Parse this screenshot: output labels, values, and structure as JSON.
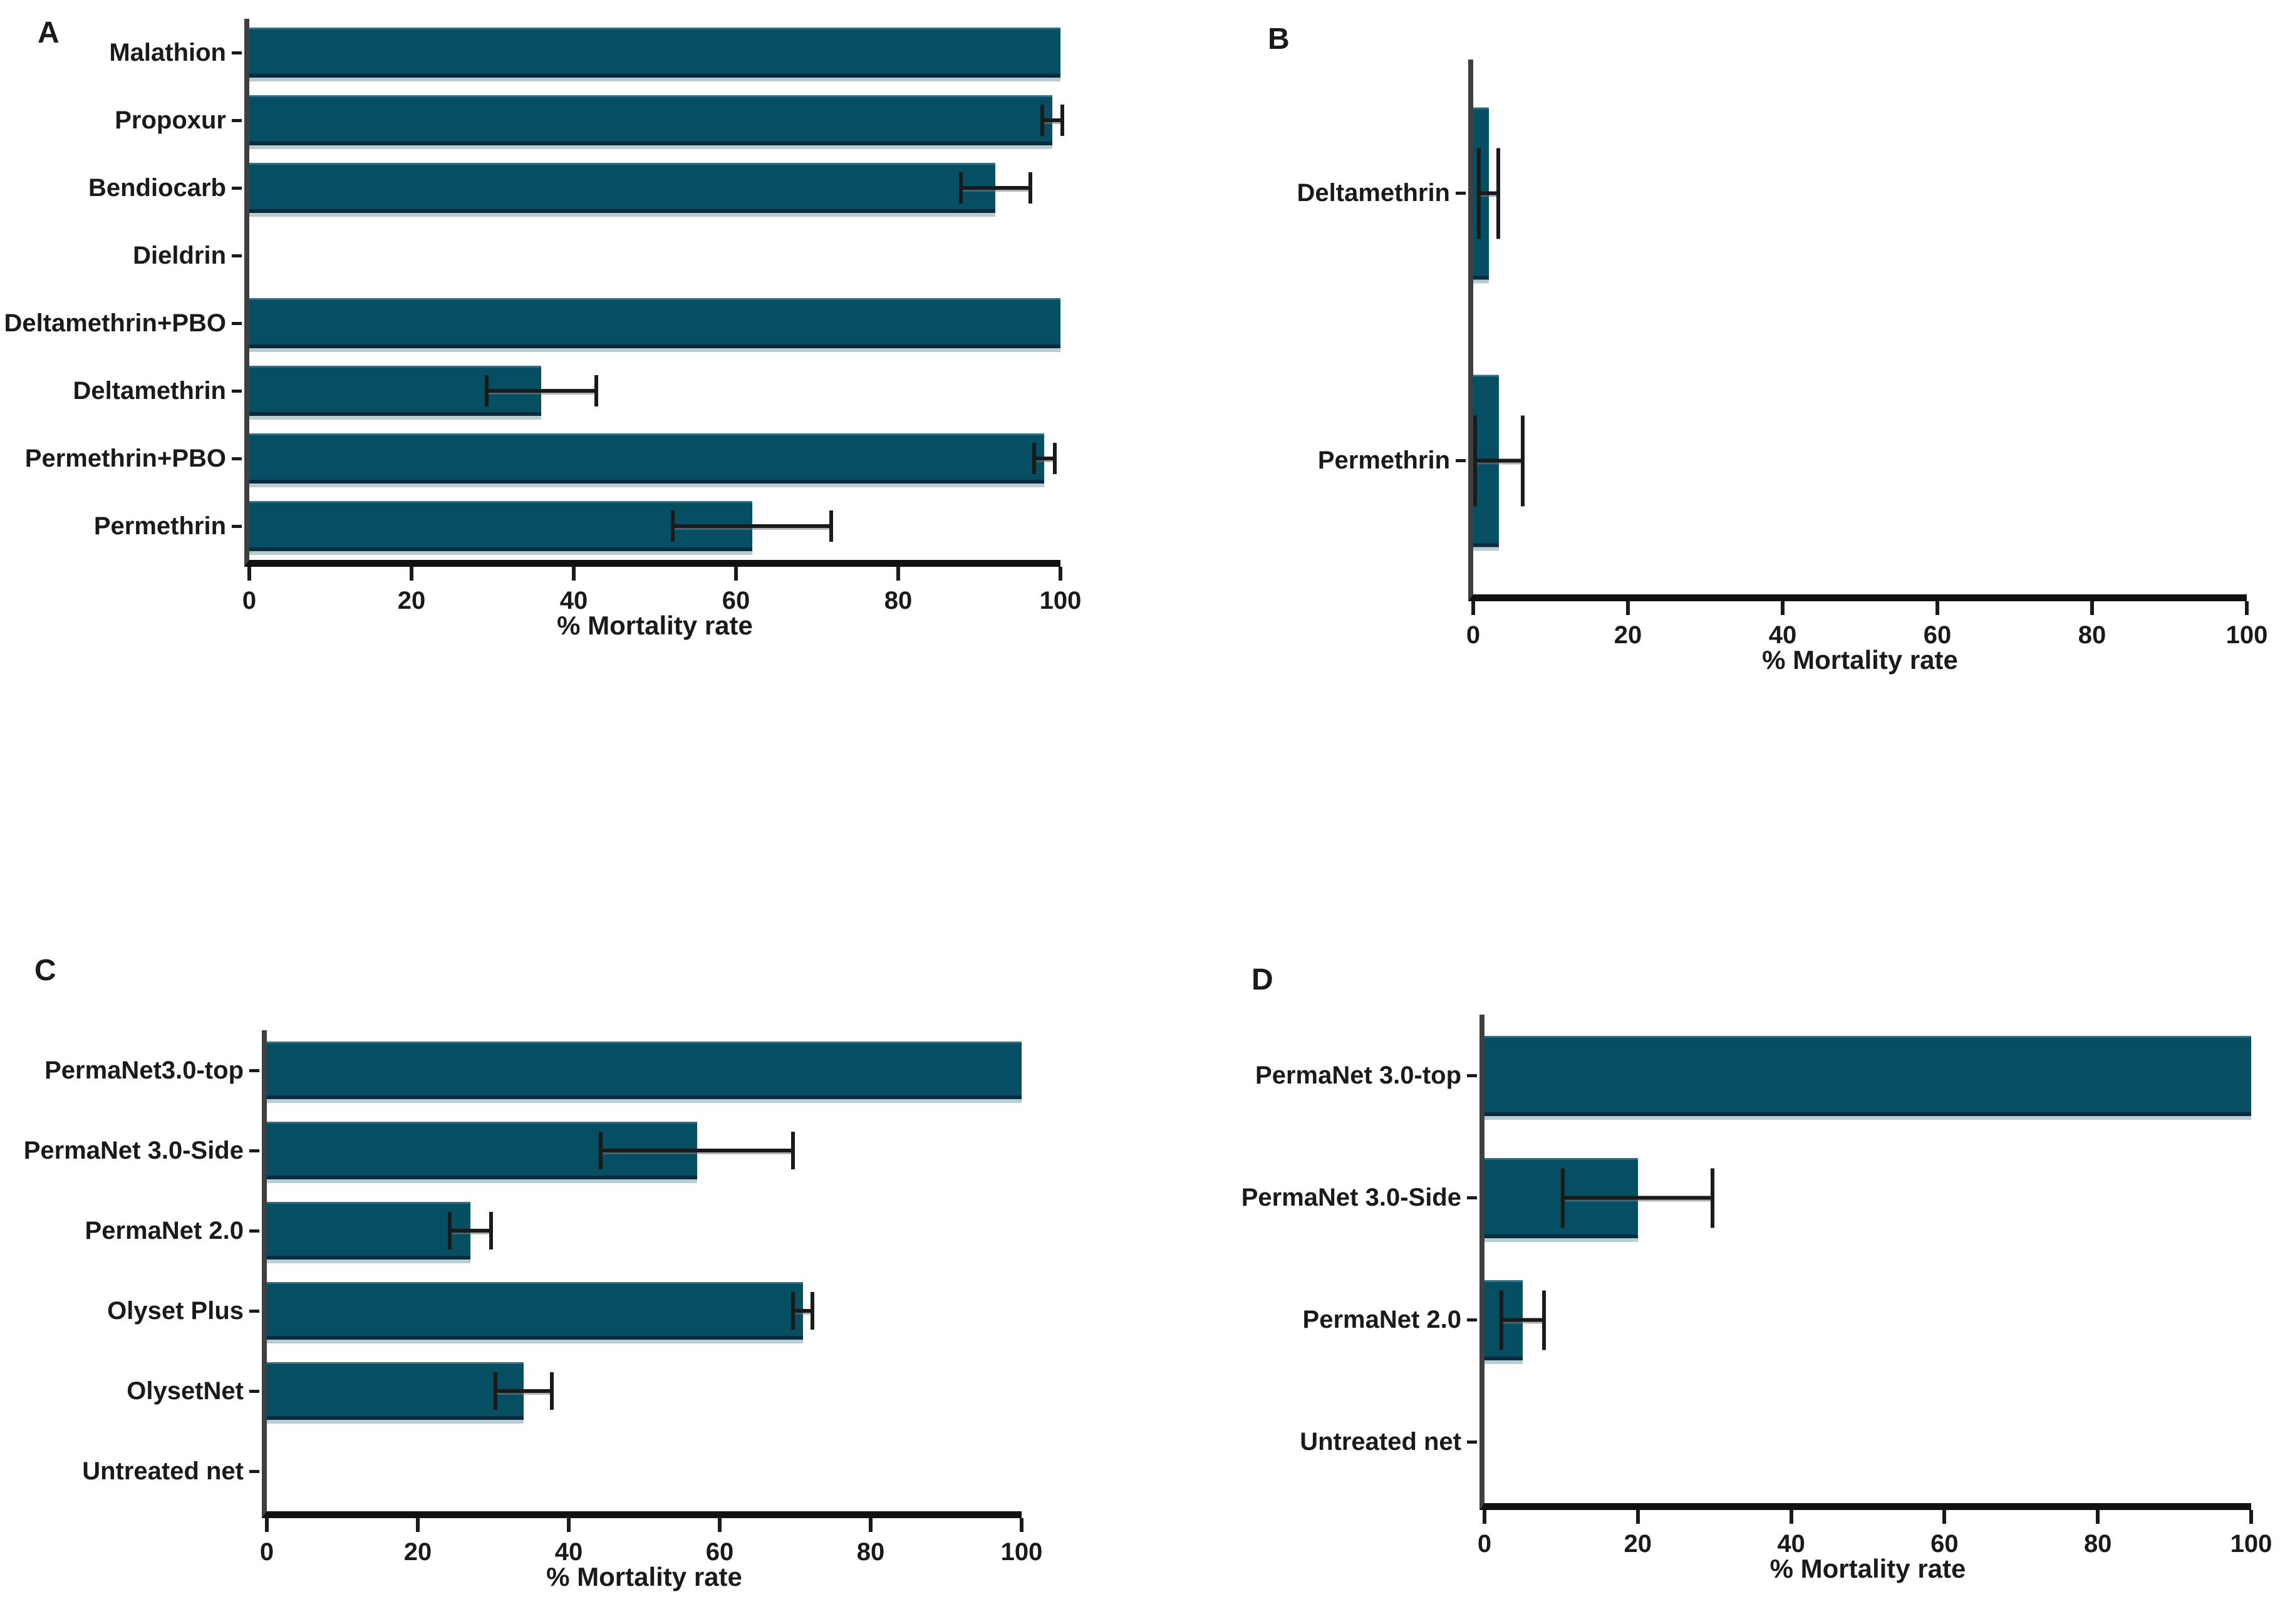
{
  "figure_title": "",
  "colors": {
    "bar": "#064F63",
    "bar_edge": "#0A2A40",
    "bar_shadow": "#B7CDD4",
    "axis": "#3F3F3F",
    "baseline": "#111111",
    "error_bar": "#1A1A1A",
    "text": "#1A1A1A",
    "background": "#FFFFFF"
  },
  "chart_data": [
    {
      "type": "bar",
      "orientation": "horizontal",
      "panel_label": "A",
      "xlabel": "% Mortality rate",
      "xlim": [
        0,
        100
      ],
      "xticks": [
        0,
        20,
        40,
        60,
        80,
        100
      ],
      "grid": false,
      "legend": false,
      "categories": [
        "Malathion",
        "Propoxur",
        "Bendiocarb",
        "Dieldrin",
        "Deltamethrin+PBO",
        "Deltamethrin",
        "Permethrin+PBO",
        "Permethrin"
      ],
      "values": [
        100,
        99,
        92,
        0,
        100,
        36,
        98,
        62
      ],
      "errors": [
        0,
        1.5,
        4.5,
        0,
        0,
        7,
        1.5,
        10
      ]
    },
    {
      "type": "bar",
      "orientation": "horizontal",
      "panel_label": "B",
      "xlabel": "% Mortality rate",
      "xlim": [
        0,
        100
      ],
      "xticks": [
        0,
        20,
        40,
        60,
        80,
        100
      ],
      "grid": false,
      "legend": false,
      "categories": [
        "Deltamethrin",
        "Permethrin"
      ],
      "values": [
        2,
        3.3
      ],
      "errors": [
        1.5,
        3.3
      ]
    },
    {
      "type": "bar",
      "orientation": "horizontal",
      "panel_label": "C",
      "xlabel": "% Mortality rate",
      "xlim": [
        0,
        100
      ],
      "xticks": [
        0,
        20,
        40,
        60,
        80,
        100
      ],
      "grid": false,
      "legend": false,
      "categories": [
        "PermaNet3.0-top",
        "PermaNet 3.0-Side",
        "PermaNet 2.0",
        "Olyset Plus",
        "OlysetNet",
        "Untreated net"
      ],
      "values": [
        100,
        57,
        27,
        71,
        34,
        0
      ],
      "errors": [
        0,
        13,
        3,
        1.5,
        4,
        0
      ]
    },
    {
      "type": "bar",
      "orientation": "horizontal",
      "panel_label": "D",
      "xlabel": "% Mortality rate",
      "xlim": [
        0,
        100
      ],
      "xticks": [
        0,
        20,
        40,
        60,
        80,
        100
      ],
      "grid": false,
      "legend": false,
      "categories": [
        "PermaNet 3.0-top",
        "PermaNet 3.0-Side",
        "PermaNet 2.0",
        "Untreated net"
      ],
      "values": [
        100,
        20,
        5,
        0
      ],
      "errors": [
        0,
        10,
        3,
        0
      ]
    }
  ]
}
